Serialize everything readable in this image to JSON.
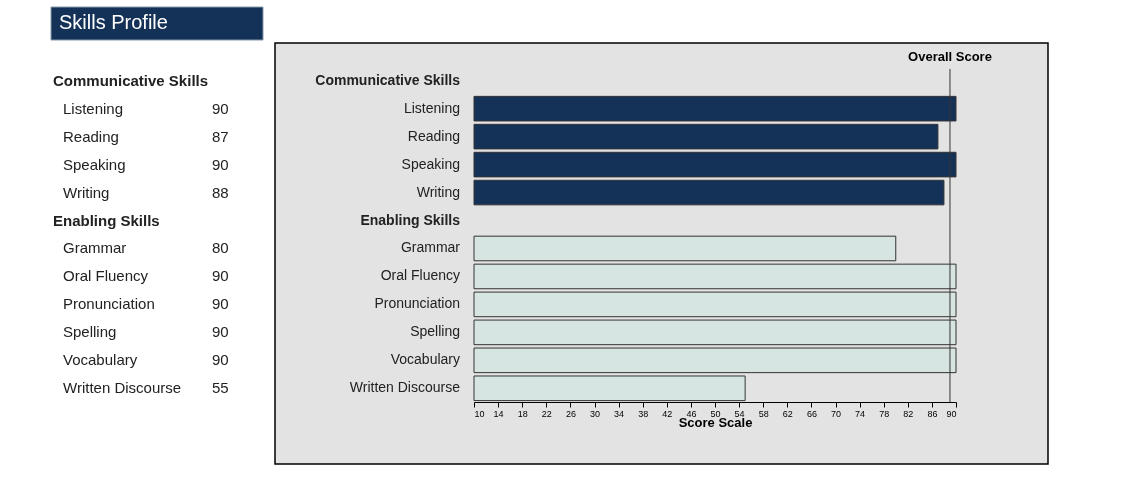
{
  "chart_data": {
    "type": "bar",
    "orientation": "horizontal",
    "title": "Skills Profile",
    "categories": [
      "Communicative Skills",
      "Listening",
      "Reading",
      "Speaking",
      "Writing",
      "Enabling Skills",
      "Grammar",
      "Oral Fluency",
      "Pronunciation",
      "Spelling",
      "Vocabulary",
      "Written Discourse"
    ],
    "values": [
      null,
      90,
      87,
      90,
      88,
      null,
      80,
      90,
      90,
      90,
      90,
      55
    ],
    "colors": [
      null,
      "#143257",
      "#143257",
      "#143257",
      "#143257",
      null,
      "#d6e5e2",
      "#d6e5e2",
      "#d6e5e2",
      "#d6e5e2",
      "#d6e5e2",
      "#d6e5e2"
    ],
    "xlabel": "Score Scale",
    "xlim": [
      10,
      90
    ],
    "xticks": [
      10,
      14,
      18,
      22,
      26,
      30,
      34,
      38,
      42,
      46,
      50,
      54,
      58,
      62,
      66,
      70,
      74,
      78,
      82,
      86,
      90
    ],
    "ref_lines": [
      {
        "axis": "x",
        "value": 89,
        "label": "Overall Score",
        "color": "#333333"
      }
    ],
    "value_labels": [
      null,
      "90",
      "87",
      "90",
      "88",
      null,
      "80",
      "90",
      "90",
      "90",
      "90",
      "55"
    ],
    "grid": false
  }
}
